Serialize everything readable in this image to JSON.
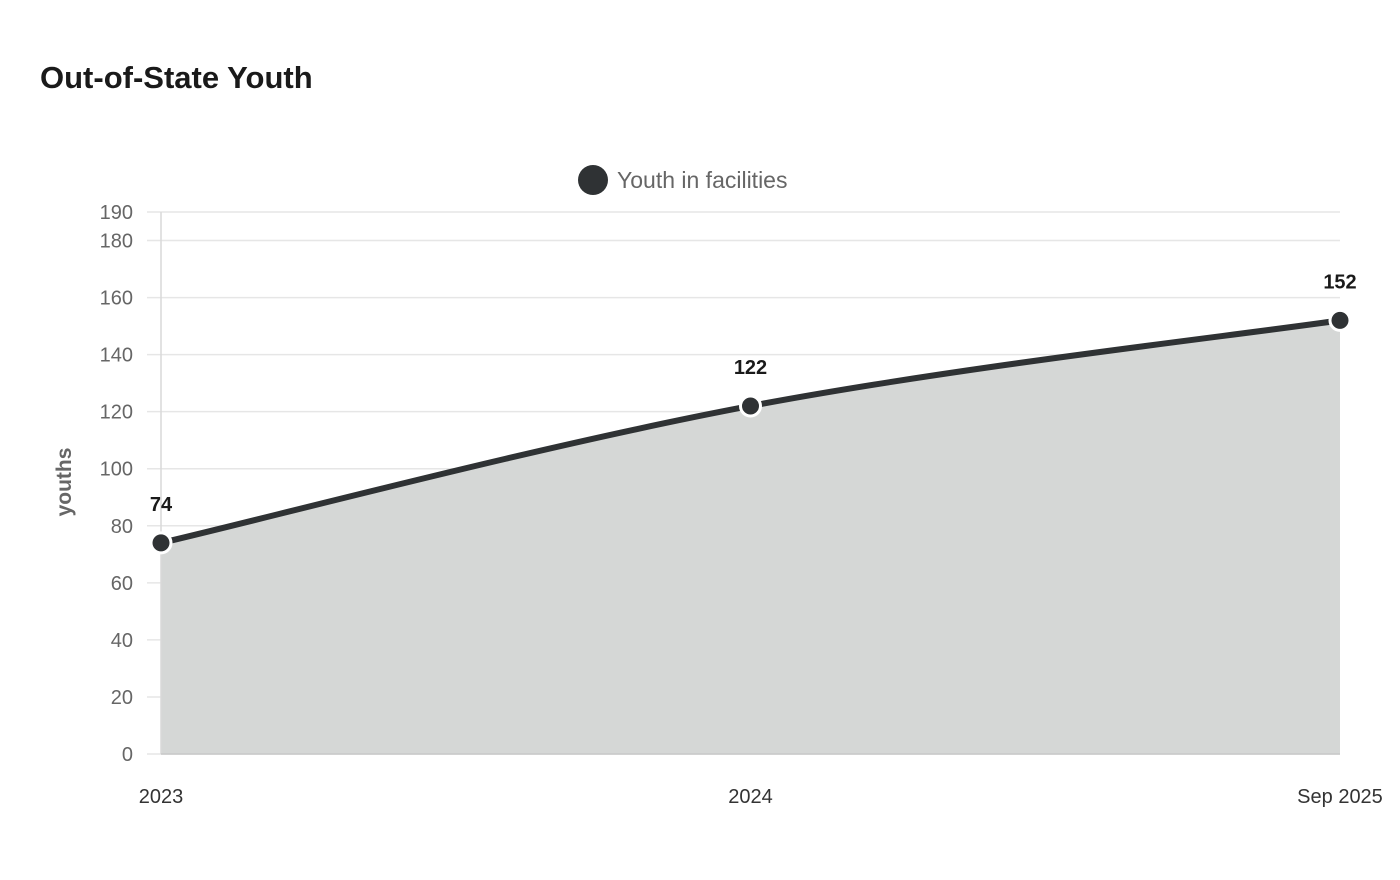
{
  "chart_data": {
    "type": "area",
    "title": "Out-of-State Youth",
    "xlabel": "",
    "ylabel": "youths",
    "categories": [
      "2023",
      "2024",
      "Sep 2025"
    ],
    "series": [
      {
        "name": "Youth in facilities",
        "values": [
          74,
          122,
          152
        ],
        "color": "#2f3234",
        "fill": "#d5d7d6"
      }
    ],
    "data_labels": [
      "74",
      "122",
      "152"
    ],
    "ylim": [
      0,
      190
    ],
    "yticks": [
      0,
      20,
      40,
      60,
      80,
      100,
      120,
      140,
      160,
      180,
      190
    ],
    "grid": true,
    "legend_position": "top-center",
    "colors": {
      "line": "#2f3234",
      "area": "#d5d7d6",
      "grid": "#e6e6e6",
      "tick_text": "#666666",
      "label_text": "#1a1a1a"
    }
  }
}
